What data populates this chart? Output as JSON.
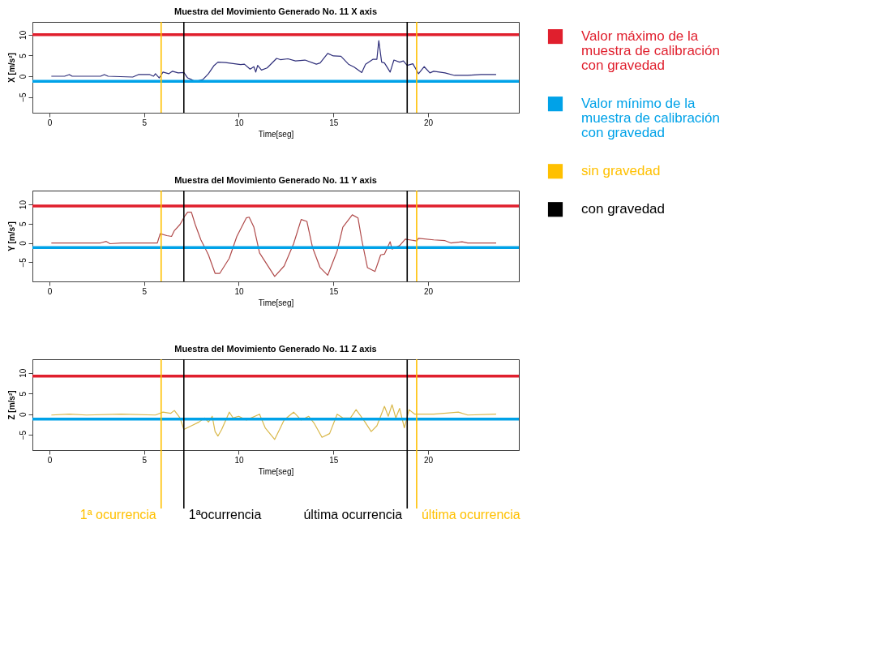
{
  "chart_data": [
    {
      "type": "line",
      "title": "Muestra del Movimiento Generado No.  11 X axis",
      "xlabel": "Time[seg]",
      "ylabel": "X [m/s²]",
      "xlim": [
        -0.9,
        24.8
      ],
      "ylim": [
        -8.8,
        13.1
      ],
      "xticks": [
        0,
        5,
        10,
        15,
        20
      ],
      "yticks": [
        -5,
        0,
        5,
        10
      ],
      "grid": false,
      "marker": "none",
      "line_style": "solid",
      "x": [
        0.1,
        0.8,
        1.05,
        1.2,
        2.7,
        2.9,
        3.1,
        4.4,
        4.7,
        5.3,
        5.5,
        5.6,
        5.8,
        6.0,
        6.3,
        6.5,
        6.8,
        7.1,
        7.3,
        7.5,
        7.7,
        8.1,
        8.4,
        8.7,
        8.9,
        9.3,
        10.1,
        10.3,
        10.6,
        10.8,
        10.9,
        11.0,
        11.2,
        11.5,
        12.0,
        12.2,
        12.6,
        13.0,
        13.5,
        14.1,
        14.3,
        14.7,
        15.0,
        15.4,
        15.8,
        16.1,
        16.5,
        16.7,
        17.1,
        17.3,
        17.4,
        17.55,
        17.7,
        18.0,
        18.2,
        18.5,
        18.7,
        18.9,
        19.2,
        19.5,
        19.8,
        20.1,
        20.3,
        20.9,
        21.4,
        22.1,
        22.8,
        23.6
      ],
      "series": [
        {
          "color": "#2e2e7a",
          "values": [
            0,
            0,
            0.4,
            0,
            0,
            0.4,
            0,
            -0.2,
            0.4,
            0.4,
            0,
            0.6,
            -0.4,
            1.0,
            0.6,
            1.2,
            0.8,
            0.9,
            -0.4,
            -0.8,
            -1.3,
            -0.8,
            0.6,
            2.6,
            3.4,
            3.3,
            2.8,
            2.9,
            1.7,
            2.3,
            1.0,
            2.6,
            1.5,
            2.0,
            4.3,
            4.0,
            4.2,
            3.7,
            3.9,
            2.9,
            3.2,
            5.5,
            4.9,
            4.8,
            2.9,
            2.2,
            0.9,
            2.9,
            4.1,
            4.1,
            8.6,
            3.4,
            3.2,
            1.0,
            3.9,
            3.4,
            3.7,
            2.6,
            3.0,
            0.6,
            2.3,
            0.8,
            1.2,
            0.8,
            0.2,
            0.2,
            0.4,
            0.4
          ]
        }
      ],
      "ref_lines": [
        {
          "axis": "y",
          "value": 10,
          "color": "#e01f2d"
        },
        {
          "axis": "y",
          "value": -1.2,
          "color": "#00a2e8"
        },
        {
          "axis": "x",
          "value": 5.9,
          "color": "#ffc000"
        },
        {
          "axis": "x",
          "value": 7.1,
          "color": "#000000"
        },
        {
          "axis": "x",
          "value": 18.9,
          "color": "#000000"
        },
        {
          "axis": "x",
          "value": 19.4,
          "color": "#ffc000"
        }
      ]
    },
    {
      "type": "line",
      "title": "Muestra del Movimiento Generado No.  11 Y axis",
      "xlabel": "Time[seg]",
      "ylabel": "Y [m/s²]",
      "xlim": [
        -0.9,
        24.8
      ],
      "ylim": [
        -10,
        13.6
      ],
      "xticks": [
        0,
        5,
        10,
        15,
        20
      ],
      "yticks": [
        -5,
        0,
        5,
        10
      ],
      "grid": false,
      "marker": "none",
      "line_style": "solid",
      "x": [
        0.1,
        2.7,
        3.0,
        3.2,
        3.8,
        5.1,
        5.7,
        5.85,
        6.2,
        6.45,
        6.6,
        6.9,
        7.15,
        7.3,
        7.5,
        7.7,
        8.0,
        8.4,
        8.75,
        9.0,
        9.5,
        9.9,
        10.4,
        10.55,
        10.8,
        11.1,
        11.9,
        12.4,
        12.9,
        13.3,
        13.6,
        13.9,
        14.3,
        14.7,
        15.2,
        15.5,
        16.0,
        16.3,
        16.5,
        16.8,
        17.2,
        17.5,
        17.7,
        18.0,
        18.1,
        18.5,
        18.8,
        19.4,
        19.5,
        20.3,
        20.9,
        21.2,
        21.8,
        22.1,
        23.6
      ],
      "series": [
        {
          "color": "#b04a4a",
          "values": [
            0,
            0,
            0.4,
            -0.2,
            0,
            0,
            0,
            2.4,
            1.9,
            1.7,
            3.2,
            4.8,
            7.0,
            8.0,
            8.0,
            4.8,
            0.8,
            -3.1,
            -7.9,
            -7.9,
            -4.0,
            1.7,
            6.5,
            6.7,
            4.1,
            -2.6,
            -8.7,
            -6.0,
            -0.2,
            6.1,
            5.6,
            -1.2,
            -6.4,
            -8.4,
            -2.1,
            4.1,
            7.3,
            6.5,
            0.8,
            -6.4,
            -7.4,
            -3.1,
            -2.9,
            0.3,
            -1.6,
            -0.7,
            1.0,
            0.5,
            1.2,
            0.8,
            0.6,
            0,
            0.3,
            0,
            0
          ]
        }
      ],
      "ref_lines": [
        {
          "axis": "y",
          "value": 9.6,
          "color": "#e01f2d"
        },
        {
          "axis": "y",
          "value": -1.2,
          "color": "#00a2e8"
        },
        {
          "axis": "x",
          "value": 5.9,
          "color": "#ffc000"
        },
        {
          "axis": "x",
          "value": 7.1,
          "color": "#000000"
        },
        {
          "axis": "x",
          "value": 18.9,
          "color": "#000000"
        },
        {
          "axis": "x",
          "value": 19.4,
          "color": "#ffc000"
        }
      ]
    },
    {
      "type": "line",
      "title": "Muestra del Movimiento Generado No.  11 Z axis",
      "xlabel": "Time[seg]",
      "ylabel": "Z [m/s²]",
      "xlim": [
        -0.9,
        24.8
      ],
      "ylim": [
        -8.7,
        13.3
      ],
      "xticks": [
        0,
        5,
        10,
        15,
        20
      ],
      "yticks": [
        -5,
        0,
        5,
        10
      ],
      "grid": false,
      "marker": "none",
      "line_style": "solid",
      "x": [
        0.1,
        1.05,
        1.95,
        3.8,
        5.6,
        6.0,
        6.4,
        6.6,
        6.9,
        7.1,
        7.5,
        7.9,
        8.2,
        8.4,
        8.6,
        8.75,
        8.9,
        9.1,
        9.5,
        9.7,
        10.0,
        10.4,
        11.1,
        11.4,
        11.9,
        12.2,
        12.4,
        12.9,
        13.3,
        13.7,
        14.0,
        14.4,
        14.8,
        15.2,
        15.5,
        15.9,
        16.2,
        16.6,
        17.0,
        17.3,
        17.7,
        17.9,
        18.1,
        18.3,
        18.5,
        18.75,
        19.0,
        19.3,
        19.6,
        20.3,
        21.6,
        22.1,
        23.6
      ],
      "series": [
        {
          "color": "#d9b84a",
          "values": [
            -0.2,
            0,
            -0.2,
            0,
            -0.2,
            0.5,
            0.2,
            0.9,
            -0.9,
            -3.7,
            -2.8,
            -1.9,
            -0.9,
            -1.9,
            -0.5,
            -4.2,
            -5.3,
            -3.7,
            0.5,
            -0.9,
            -0.5,
            -1.4,
            0,
            -3.3,
            -6.1,
            -3.3,
            -1.4,
            0.5,
            -1.4,
            -0.5,
            -2.3,
            -5.6,
            -4.7,
            0,
            -0.9,
            -0.9,
            1.1,
            -1.4,
            -4.2,
            -2.8,
            1.9,
            -0.5,
            2.3,
            -0.9,
            1.4,
            -3.3,
            1.1,
            0,
            0,
            0,
            0.5,
            -0.2,
            0
          ]
        }
      ],
      "ref_lines": [
        {
          "axis": "y",
          "value": 9.2,
          "color": "#e01f2d"
        },
        {
          "axis": "y",
          "value": -1.2,
          "color": "#00a2e8"
        },
        {
          "axis": "x",
          "value": 5.9,
          "color": "#ffc000",
          "label": "1ª ocurrencia"
        },
        {
          "axis": "x",
          "value": 7.1,
          "color": "#000000",
          "label": "1ªocurrencia"
        },
        {
          "axis": "x",
          "value": 18.9,
          "color": "#000000",
          "label": "última ocurrencia"
        },
        {
          "axis": "x",
          "value": 19.4,
          "color": "#ffc000",
          "label": "última ocurrencia"
        }
      ]
    },
    {
      "type": "other",
      "series": [
        {
          "name": "Valor máximo de la muestra de calibración con gravedad",
          "color": "#e01f2d"
        },
        {
          "name": "Valor mínimo de la muestra de calibración con gravedad",
          "color": "#00a2e8"
        },
        {
          "name": "sin gravedad",
          "color": "#ffc000"
        },
        {
          "name": "con gravedad",
          "color": "#000000"
        }
      ]
    }
  ]
}
